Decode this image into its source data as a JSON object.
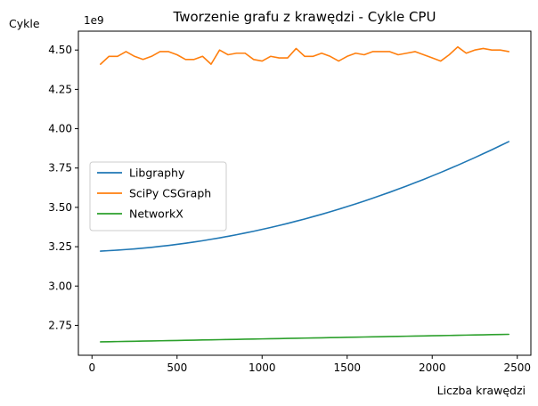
{
  "chart_data": {
    "type": "line",
    "title": "Tworzenie grafu z krawędzi - Cykle CPU",
    "xlabel": "Liczba krawędzi",
    "ylabel": "Cykle",
    "y_offset_text": "1e9",
    "xlim": [
      -80,
      2580
    ],
    "ylim": [
      2.56,
      4.62
    ],
    "x_ticks": [
      0,
      500,
      1000,
      1500,
      2000,
      2500
    ],
    "y_ticks": [
      2.75,
      3.0,
      3.25,
      3.5,
      3.75,
      4.0,
      4.25,
      4.5
    ],
    "y_tick_labels": [
      "2.75",
      "3.00",
      "3.25",
      "3.50",
      "3.75",
      "4.00",
      "4.25",
      "4.50"
    ],
    "grid": false,
    "legend_position": "center-left",
    "x": [
      50,
      100,
      150,
      200,
      250,
      300,
      350,
      400,
      450,
      500,
      550,
      600,
      650,
      700,
      750,
      800,
      850,
      900,
      950,
      1000,
      1050,
      1100,
      1150,
      1200,
      1250,
      1300,
      1350,
      1400,
      1450,
      1500,
      1550,
      1600,
      1650,
      1700,
      1750,
      1800,
      1850,
      1900,
      1950,
      2000,
      2050,
      2100,
      2150,
      2200,
      2250,
      2300,
      2350,
      2400,
      2450
    ],
    "series": [
      {
        "name": "Libgraphy",
        "color": "#1f77b4",
        "values": [
          3.222,
          3.225,
          3.228,
          3.232,
          3.236,
          3.241,
          3.246,
          3.252,
          3.258,
          3.265,
          3.272,
          3.28,
          3.288,
          3.297,
          3.306,
          3.316,
          3.326,
          3.337,
          3.348,
          3.36,
          3.372,
          3.385,
          3.398,
          3.412,
          3.426,
          3.441,
          3.456,
          3.472,
          3.488,
          3.505,
          3.522,
          3.54,
          3.558,
          3.577,
          3.596,
          3.616,
          3.636,
          3.657,
          3.678,
          3.7,
          3.722,
          3.745,
          3.768,
          3.792,
          3.816,
          3.841,
          3.866,
          3.892,
          3.918
        ]
      },
      {
        "name": "SciPy CSGraph",
        "color": "#ff7f0e",
        "values": [
          4.41,
          4.46,
          4.46,
          4.49,
          4.46,
          4.44,
          4.46,
          4.49,
          4.49,
          4.47,
          4.44,
          4.44,
          4.46,
          4.41,
          4.5,
          4.47,
          4.48,
          4.48,
          4.44,
          4.43,
          4.46,
          4.45,
          4.45,
          4.51,
          4.46,
          4.46,
          4.48,
          4.46,
          4.43,
          4.46,
          4.48,
          4.47,
          4.49,
          4.49,
          4.49,
          4.47,
          4.48,
          4.49,
          4.47,
          4.45,
          4.43,
          4.47,
          4.52,
          4.48,
          4.5,
          4.51,
          4.5,
          4.5,
          4.49
        ]
      },
      {
        "name": "NetworkX",
        "color": "#2ca02c",
        "values": [
          2.645,
          2.646,
          2.647,
          2.648,
          2.649,
          2.65,
          2.651,
          2.652,
          2.653,
          2.654,
          2.655,
          2.656,
          2.657,
          2.658,
          2.659,
          2.66,
          2.661,
          2.662,
          2.663,
          2.664,
          2.665,
          2.666,
          2.667,
          2.668,
          2.669,
          2.67,
          2.671,
          2.672,
          2.673,
          2.674,
          2.675,
          2.676,
          2.677,
          2.678,
          2.679,
          2.68,
          2.681,
          2.682,
          2.683,
          2.684,
          2.685,
          2.686,
          2.687,
          2.688,
          2.689,
          2.69,
          2.691,
          2.692,
          2.693
        ]
      }
    ]
  }
}
